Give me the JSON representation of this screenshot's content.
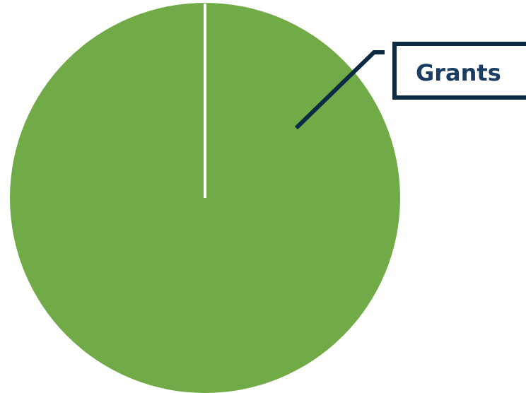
{
  "chart_data": {
    "type": "pie",
    "series": [
      {
        "name": "Grants",
        "value": 100
      }
    ],
    "labels": [
      "Grants"
    ],
    "values": [
      100
    ],
    "colors": {
      "slice": "#71ab47",
      "divider": "#ffffff",
      "callout": "#0d2a45",
      "label_text": "#1b3d63",
      "background": "#ffffff"
    }
  }
}
